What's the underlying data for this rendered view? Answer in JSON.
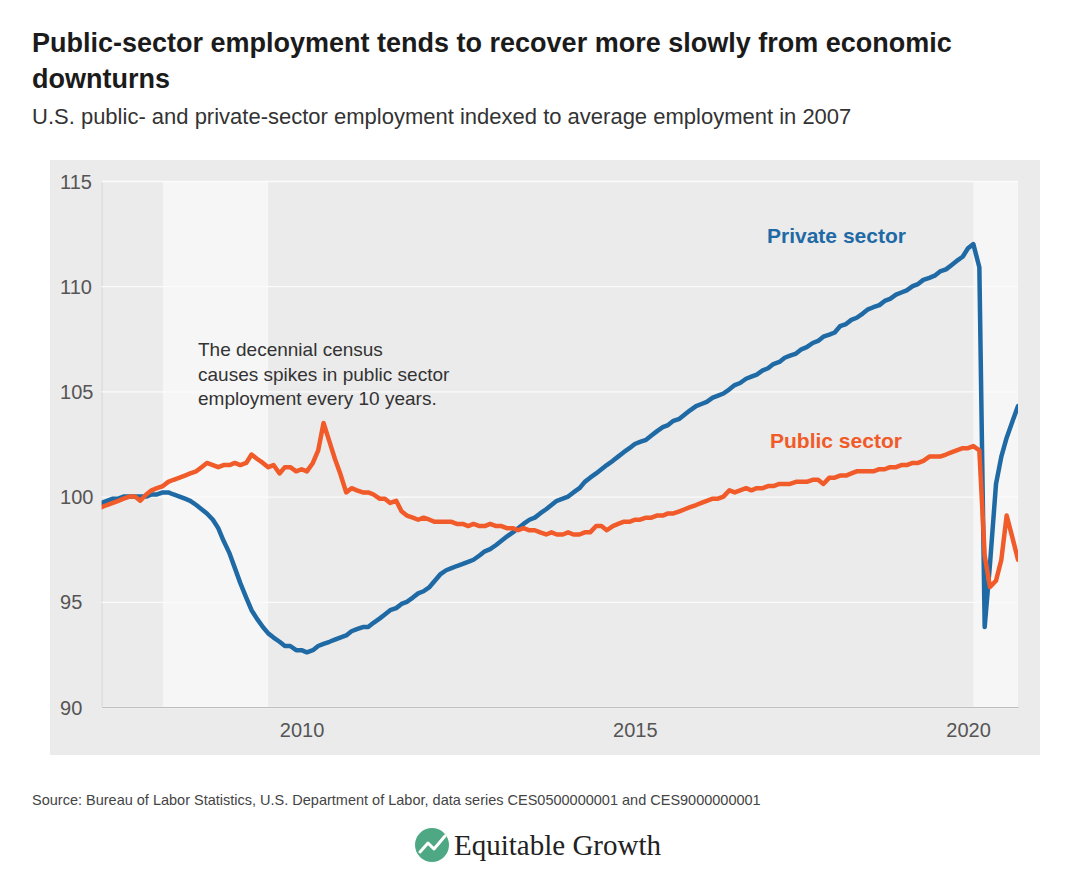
{
  "chart_data": {
    "type": "line",
    "title": "Public-sector employment tends to recover more slowly from economic downturns",
    "subtitle": "U.S. public- and private-sector employment indexed to average employment in 2007",
    "annotation": [
      "The decennial census",
      "causes spikes in public sector",
      "employment every 10 years."
    ],
    "source": "Source: Bureau of Labor Statistics, U.S. Department of Labor, data series CES0500000001 and CES9000000001",
    "branding": "Equitable Growth",
    "grid": true,
    "xlim": [
      2007,
      2020.75
    ],
    "xticks": [
      2010,
      2015,
      2020
    ],
    "ylim": [
      90,
      115
    ],
    "yticks": [
      90,
      95,
      100,
      105,
      110,
      115
    ],
    "shaded_periods": [
      [
        2007.92,
        2009.5
      ],
      [
        2020.08,
        2020.75
      ]
    ],
    "x": [
      2007.0,
      2007.08,
      2007.17,
      2007.25,
      2007.33,
      2007.42,
      2007.5,
      2007.58,
      2007.67,
      2007.75,
      2007.83,
      2007.92,
      2008.0,
      2008.08,
      2008.17,
      2008.25,
      2008.33,
      2008.42,
      2008.5,
      2008.58,
      2008.67,
      2008.75,
      2008.83,
      2008.92,
      2009.0,
      2009.08,
      2009.17,
      2009.25,
      2009.33,
      2009.42,
      2009.5,
      2009.58,
      2009.67,
      2009.75,
      2009.83,
      2009.92,
      2010.0,
      2010.08,
      2010.17,
      2010.25,
      2010.33,
      2010.42,
      2010.5,
      2010.58,
      2010.67,
      2010.75,
      2010.83,
      2010.92,
      2011.0,
      2011.08,
      2011.17,
      2011.25,
      2011.33,
      2011.42,
      2011.5,
      2011.58,
      2011.67,
      2011.75,
      2011.83,
      2011.92,
      2012.0,
      2012.08,
      2012.17,
      2012.25,
      2012.33,
      2012.42,
      2012.5,
      2012.58,
      2012.67,
      2012.75,
      2012.83,
      2012.92,
      2013.0,
      2013.08,
      2013.17,
      2013.25,
      2013.33,
      2013.42,
      2013.5,
      2013.58,
      2013.67,
      2013.75,
      2013.83,
      2013.92,
      2014.0,
      2014.08,
      2014.17,
      2014.25,
      2014.33,
      2014.42,
      2014.5,
      2014.58,
      2014.67,
      2014.75,
      2014.83,
      2014.92,
      2015.0,
      2015.08,
      2015.17,
      2015.25,
      2015.33,
      2015.42,
      2015.5,
      2015.58,
      2015.67,
      2015.75,
      2015.83,
      2015.92,
      2016.0,
      2016.08,
      2016.17,
      2016.25,
      2016.33,
      2016.42,
      2016.5,
      2016.58,
      2016.67,
      2016.75,
      2016.83,
      2016.92,
      2017.0,
      2017.08,
      2017.17,
      2017.25,
      2017.33,
      2017.42,
      2017.5,
      2017.58,
      2017.67,
      2017.75,
      2017.83,
      2017.92,
      2018.0,
      2018.08,
      2018.17,
      2018.25,
      2018.33,
      2018.42,
      2018.5,
      2018.58,
      2018.67,
      2018.75,
      2018.83,
      2018.92,
      2019.0,
      2019.08,
      2019.17,
      2019.25,
      2019.33,
      2019.42,
      2019.5,
      2019.58,
      2019.67,
      2019.75,
      2019.83,
      2019.92,
      2020.0,
      2020.08,
      2020.17,
      2020.25,
      2020.33,
      2020.42,
      2020.5,
      2020.58,
      2020.67,
      2020.75
    ],
    "series": [
      {
        "name": "Private sector",
        "color": "#1f6aa5",
        "values": [
          99.7,
          99.8,
          99.9,
          99.9,
          100.0,
          100.0,
          100.0,
          100.0,
          100.0,
          100.1,
          100.1,
          100.2,
          100.2,
          100.1,
          100.0,
          99.9,
          99.8,
          99.6,
          99.4,
          99.2,
          98.9,
          98.5,
          97.9,
          97.3,
          96.6,
          95.9,
          95.2,
          94.6,
          94.2,
          93.8,
          93.5,
          93.3,
          93.1,
          92.9,
          92.9,
          92.7,
          92.7,
          92.6,
          92.7,
          92.9,
          93.0,
          93.1,
          93.2,
          93.3,
          93.4,
          93.6,
          93.7,
          93.8,
          93.8,
          94.0,
          94.2,
          94.4,
          94.6,
          94.7,
          94.9,
          95.0,
          95.2,
          95.4,
          95.5,
          95.7,
          96.0,
          96.3,
          96.5,
          96.6,
          96.7,
          96.8,
          96.9,
          97.0,
          97.2,
          97.4,
          97.5,
          97.7,
          97.9,
          98.1,
          98.3,
          98.5,
          98.7,
          98.9,
          99.0,
          99.2,
          99.4,
          99.6,
          99.8,
          99.9,
          100.0,
          100.2,
          100.4,
          100.7,
          100.9,
          101.1,
          101.3,
          101.5,
          101.7,
          101.9,
          102.1,
          102.3,
          102.5,
          102.6,
          102.7,
          102.9,
          103.1,
          103.3,
          103.4,
          103.6,
          103.7,
          103.9,
          104.1,
          104.3,
          104.4,
          104.5,
          104.7,
          104.8,
          104.9,
          105.1,
          105.3,
          105.4,
          105.6,
          105.7,
          105.8,
          106.0,
          106.1,
          106.3,
          106.4,
          106.6,
          106.7,
          106.8,
          107.0,
          107.1,
          107.3,
          107.4,
          107.6,
          107.7,
          107.8,
          108.1,
          108.2,
          108.4,
          108.5,
          108.7,
          108.9,
          109.0,
          109.1,
          109.3,
          109.4,
          109.6,
          109.7,
          109.8,
          110.0,
          110.1,
          110.3,
          110.4,
          110.5,
          110.7,
          110.8,
          111.0,
          111.2,
          111.4,
          111.8,
          112.0,
          110.9,
          93.8,
          96.8,
          100.6,
          101.9,
          102.8,
          103.6,
          104.3
        ]
      },
      {
        "name": "Public sector",
        "color": "#f15a29",
        "values": [
          99.5,
          99.6,
          99.7,
          99.8,
          99.9,
          100.0,
          100.0,
          99.8,
          100.1,
          100.3,
          100.4,
          100.5,
          100.7,
          100.8,
          100.9,
          101.0,
          101.1,
          101.2,
          101.4,
          101.6,
          101.5,
          101.4,
          101.5,
          101.5,
          101.6,
          101.5,
          101.6,
          102.0,
          101.8,
          101.6,
          101.4,
          101.5,
          101.1,
          101.4,
          101.4,
          101.2,
          101.3,
          101.2,
          101.6,
          102.2,
          103.5,
          102.6,
          101.8,
          101.1,
          100.2,
          100.4,
          100.3,
          100.2,
          100.2,
          100.1,
          99.9,
          99.9,
          99.7,
          99.8,
          99.3,
          99.1,
          99.0,
          98.9,
          99.0,
          98.9,
          98.8,
          98.8,
          98.8,
          98.8,
          98.7,
          98.7,
          98.6,
          98.7,
          98.6,
          98.6,
          98.7,
          98.6,
          98.6,
          98.5,
          98.5,
          98.4,
          98.5,
          98.4,
          98.4,
          98.3,
          98.2,
          98.3,
          98.2,
          98.2,
          98.3,
          98.2,
          98.2,
          98.3,
          98.3,
          98.6,
          98.6,
          98.4,
          98.6,
          98.7,
          98.8,
          98.8,
          98.9,
          98.9,
          99.0,
          99.0,
          99.1,
          99.1,
          99.2,
          99.2,
          99.3,
          99.4,
          99.5,
          99.6,
          99.7,
          99.8,
          99.9,
          99.9,
          100.0,
          100.3,
          100.2,
          100.3,
          100.4,
          100.3,
          100.4,
          100.4,
          100.5,
          100.5,
          100.6,
          100.6,
          100.6,
          100.7,
          100.7,
          100.7,
          100.8,
          100.8,
          100.6,
          100.9,
          100.9,
          101.0,
          101.0,
          101.1,
          101.2,
          101.2,
          101.2,
          101.2,
          101.3,
          101.3,
          101.4,
          101.4,
          101.5,
          101.5,
          101.6,
          101.6,
          101.7,
          101.9,
          101.9,
          101.9,
          102.0,
          102.1,
          102.2,
          102.3,
          102.3,
          102.4,
          102.2,
          97.2,
          95.7,
          96.0,
          97.0,
          99.1,
          98.0,
          97.0
        ]
      }
    ]
  }
}
